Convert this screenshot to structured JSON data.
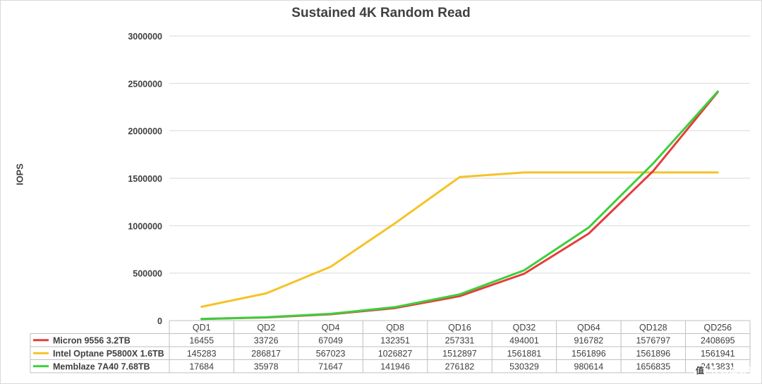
{
  "chart_data": {
    "type": "line",
    "title": "Sustained 4K Random Read",
    "xlabel": "",
    "ylabel": "IOPS",
    "ylim": [
      0,
      3000000
    ],
    "yticks": [
      0,
      500000,
      1000000,
      1500000,
      2000000,
      2500000,
      3000000
    ],
    "grid": true,
    "legend": "data table below chart",
    "categories": [
      "QD1",
      "QD2",
      "QD4",
      "QD8",
      "QD16",
      "QD32",
      "QD64",
      "QD128",
      "QD256"
    ],
    "series": [
      {
        "name": "Micron 9556 3.2TB",
        "color": "#e83b3b",
        "values": [
          16455,
          33726,
          67049,
          132351,
          257331,
          494001,
          916782,
          1576797,
          2408695
        ],
        "labels": [
          "16455",
          "33726",
          "67049",
          "132351",
          "257331",
          "494001",
          "916782",
          "1576797",
          "2408695"
        ]
      },
      {
        "name": "Intel Optane P5800X 1.6TB",
        "color": "#f5c328",
        "values": [
          145283,
          286817,
          567023,
          1026827,
          1512897,
          1561881,
          1561896,
          1561896,
          1561941
        ],
        "labels": [
          "145283",
          "286817",
          "567023",
          "1026827",
          "1512897",
          "1561881",
          "1561896",
          "1561896",
          "1561941"
        ]
      },
      {
        "name": "Memblaze 7A40 7.68TB",
        "color": "#3ccf3c",
        "values": [
          17684,
          35978,
          71647,
          141946,
          276182,
          530329,
          980614,
          1656835,
          2413831
        ],
        "labels": [
          "17684",
          "35978",
          "71647",
          "141946",
          "276182",
          "530329",
          "980614",
          "1656835",
          "2413831"
        ]
      }
    ]
  },
  "watermark": {
    "text": "值 什么值得买",
    "badge": "值",
    "label": "什么值得买"
  }
}
